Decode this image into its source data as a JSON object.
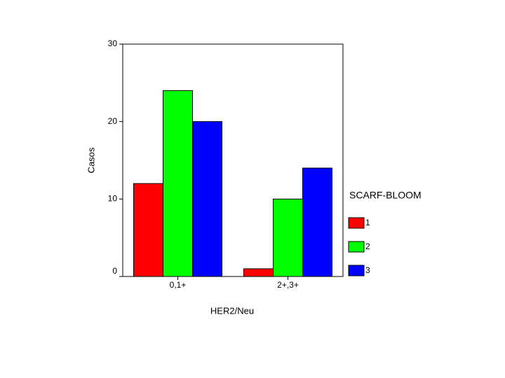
{
  "chart_data": {
    "type": "bar",
    "x_label": "HER2/Neu",
    "y_label": "Casos",
    "legend_title": "SCARF-BLOOM",
    "categories": [
      "0,1+",
      "2+,3+"
    ],
    "series": [
      {
        "name": "1",
        "color": "#ff0000",
        "values": [
          12,
          1
        ]
      },
      {
        "name": "2",
        "color": "#00ff00",
        "values": [
          24,
          10
        ]
      },
      {
        "name": "3",
        "color": "#0000ff",
        "values": [
          20,
          14
        ]
      }
    ],
    "ylim": [
      0,
      30
    ],
    "yticks": [
      0,
      10,
      20,
      30
    ],
    "grid": false,
    "legend": "right"
  }
}
